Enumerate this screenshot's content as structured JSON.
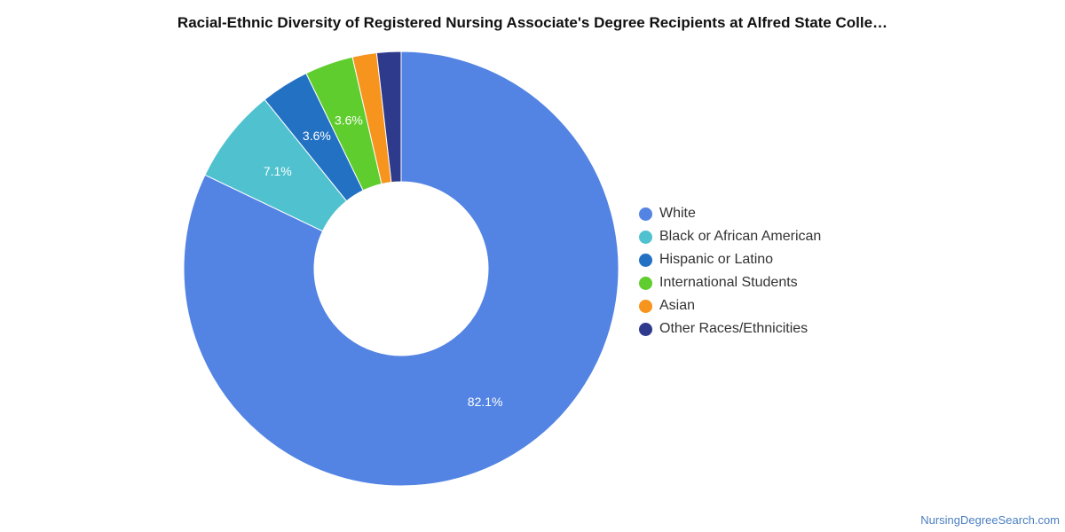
{
  "chart_data": {
    "type": "pie",
    "donut": true,
    "title": "Racial-Ethnic Diversity of Registered Nursing Associate's Degree Recipients at Alfred State Colle…",
    "categories": [
      "White",
      "Black or African American",
      "Hispanic or Latino",
      "International Students",
      "Asian",
      "Other Races/Ethnicities"
    ],
    "values": [
      82.1,
      7.1,
      3.6,
      3.6,
      1.8,
      1.8
    ],
    "data_labels": [
      "82.1%",
      "7.1%",
      "3.6%",
      "3.6%",
      "",
      ""
    ],
    "colors": [
      "#5384e3",
      "#50c2cf",
      "#2271c3",
      "#5fcd2d",
      "#f7941d",
      "#2e3a8c"
    ],
    "legend_position": "right"
  },
  "source": "NursingDegreeSearch.com"
}
